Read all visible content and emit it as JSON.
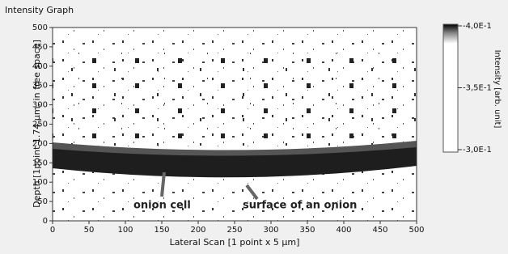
{
  "chart_data": {
    "type": "intensity_graph",
    "title": "Intensity Graph",
    "x_label": "Lateral Scan [1 point x 5 µm]",
    "y_label": "Depth [1point 1.74 µm, in free space]",
    "colorbar_label": "Intensity [arb. unit]",
    "xlim": [
      0,
      500
    ],
    "xticks": [
      0,
      50,
      100,
      150,
      200,
      250,
      300,
      350,
      400,
      450,
      500
    ],
    "ylim": [
      0,
      500
    ],
    "yticks": [
      0,
      50,
      100,
      150,
      200,
      250,
      300,
      350,
      400,
      450,
      500
    ],
    "clim": [
      -0.3,
      -0.4
    ],
    "cticks": [
      {
        "value": -0.4,
        "label": "-4,0E-1"
      },
      {
        "value": -0.35,
        "label": "-3,5E-1"
      },
      {
        "value": -0.3,
        "label": "-3,0E-1"
      }
    ],
    "annotations": [
      {
        "text": "onion cell"
      },
      {
        "text": "surface of an onion"
      }
    ]
  }
}
